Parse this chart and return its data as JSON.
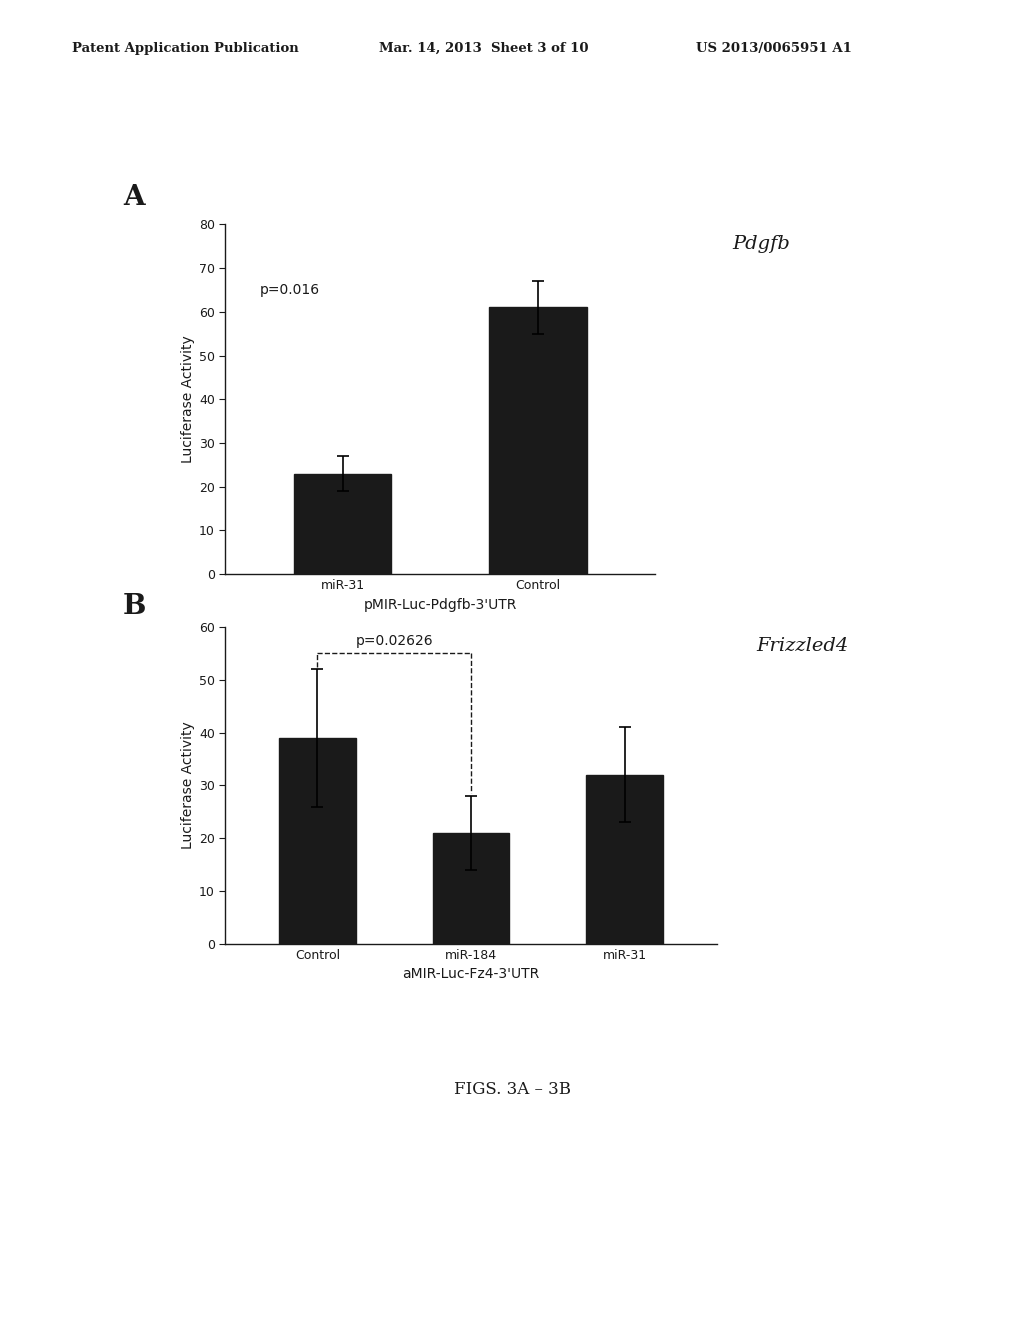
{
  "header_left": "Patent Application Publication",
  "header_mid": "Mar. 14, 2013  Sheet 3 of 10",
  "header_right": "US 2013/0065951 A1",
  "footer": "FIGS. 3A – 3B",
  "panel_A": {
    "label": "A",
    "title": "Pdgfb",
    "categories": [
      "miR-31",
      "Control"
    ],
    "values": [
      23,
      61
    ],
    "errors": [
      4,
      6
    ],
    "ylabel": "Luciferase Activity",
    "xlabel": "pMIR-Luc-Pdgfb-3'UTR",
    "ylim": [
      0,
      80
    ],
    "yticks": [
      0,
      10,
      20,
      30,
      40,
      50,
      60,
      70,
      80
    ],
    "pvalue_text": "p=0.016",
    "bar_color": "#1a1a1a"
  },
  "panel_B": {
    "label": "B",
    "title": "Frizzled4",
    "categories": [
      "Control",
      "miR-184",
      "miR-31"
    ],
    "values": [
      39,
      21,
      32
    ],
    "errors": [
      13,
      7,
      9
    ],
    "ylabel": "Luciferase Activity",
    "xlabel": "aMIR-Luc-Fz4-3'UTR",
    "ylim": [
      0,
      60
    ],
    "yticks": [
      0,
      10,
      20,
      30,
      40,
      50,
      60
    ],
    "pvalue_text": "p=0.02626",
    "bracket_from": 0,
    "bracket_to": 1,
    "bar_color": "#1a1a1a"
  },
  "bg_color": "#ffffff",
  "text_color": "#1a1a1a"
}
